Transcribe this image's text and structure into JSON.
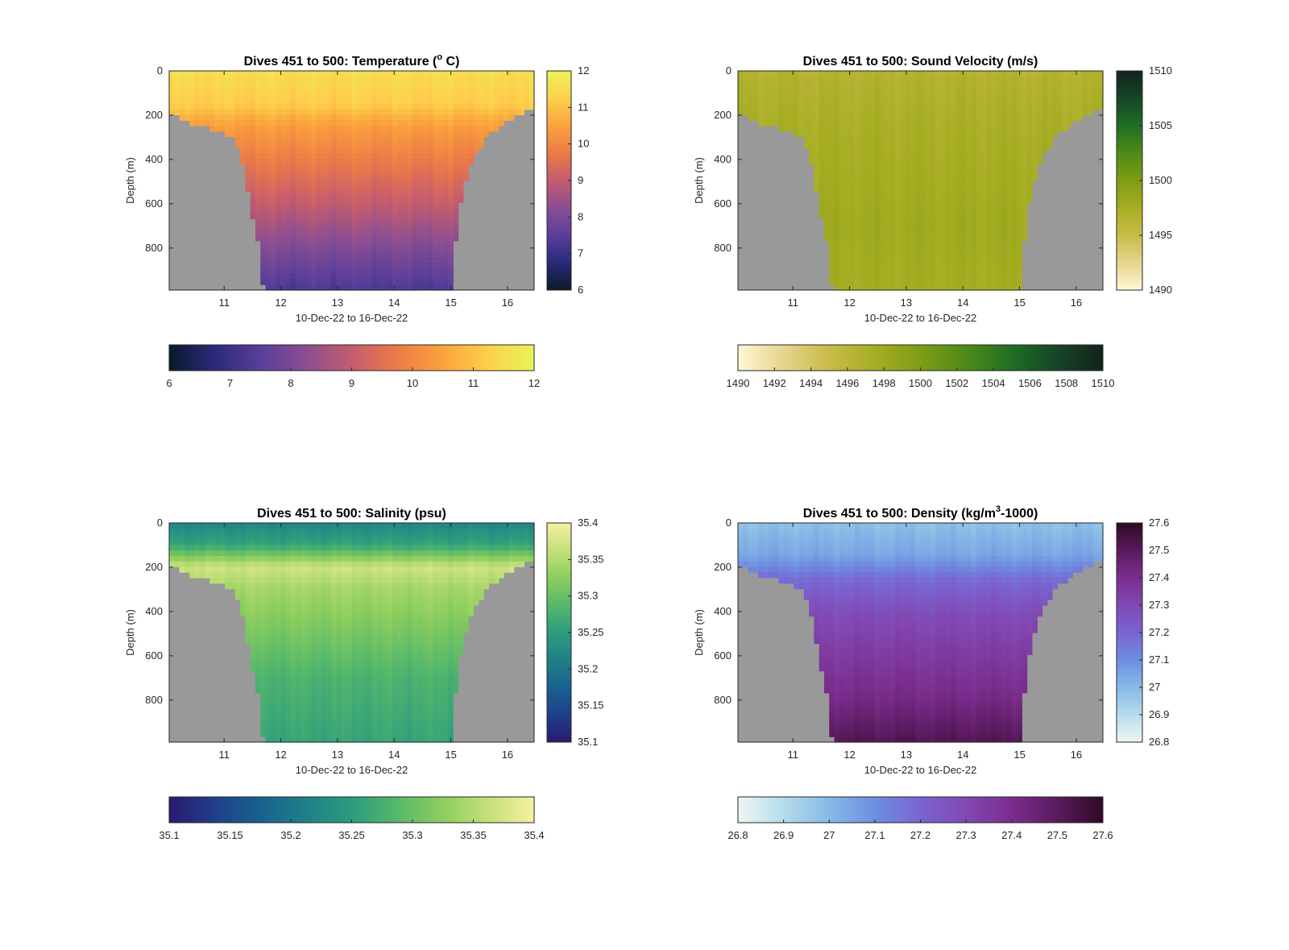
{
  "chart_data": [
    {
      "type": "heatmap",
      "title": "Dives 451 to 500: Temperature (",
      "title_sup": "o",
      "title_tail": " C)",
      "xlabel": "10-Dec-22 to 16-Dec-22",
      "ylabel": "Depth (m)",
      "x_ticks": [
        "11",
        "12",
        "13",
        "14",
        "15",
        "16"
      ],
      "x_tick_values": [
        11,
        12,
        13,
        14,
        15,
        16
      ],
      "xlim": [
        10.03,
        16.47
      ],
      "y_ticks": [
        "0",
        "200",
        "400",
        "600",
        "800"
      ],
      "y_tick_values": [
        0,
        200,
        400,
        600,
        800
      ],
      "ylim": [
        0,
        990
      ],
      "y_reversed": true,
      "clim": [
        6,
        12
      ],
      "colorbar_ticks": [
        "6",
        "7",
        "8",
        "9",
        "10",
        "11",
        "12"
      ],
      "colorbar_tick_values": [
        6,
        7,
        8,
        9,
        10,
        11,
        12
      ],
      "colormap": [
        "#0a1a2a",
        "#2a2a7a",
        "#5a3e9a",
        "#8a4e92",
        "#c45c6e",
        "#ec7a48",
        "#fba33c",
        "#fdd04c",
        "#e8f45a"
      ],
      "background_color": "#999999",
      "bottom_depth": [
        {
          "day": 10.03,
          "depth": 190
        },
        {
          "day": 10.5,
          "depth": 245
        },
        {
          "day": 11.0,
          "depth": 275
        },
        {
          "day": 11.2,
          "depth": 320
        },
        {
          "day": 11.35,
          "depth": 450
        },
        {
          "day": 11.5,
          "depth": 650
        },
        {
          "day": 11.62,
          "depth": 800
        },
        {
          "day": 11.7,
          "depth": 990
        },
        {
          "day": 15.0,
          "depth": 990
        },
        {
          "day": 15.05,
          "depth": 840
        },
        {
          "day": 15.2,
          "depth": 530
        },
        {
          "day": 15.4,
          "depth": 380
        },
        {
          "day": 15.7,
          "depth": 280
        },
        {
          "day": 16.0,
          "depth": 220
        },
        {
          "day": 16.47,
          "depth": 170
        }
      ],
      "profile": [
        {
          "depth": 0,
          "value": 11.5
        },
        {
          "depth": 150,
          "value": 11.2
        },
        {
          "depth": 250,
          "value": 10.4
        },
        {
          "depth": 400,
          "value": 9.8
        },
        {
          "depth": 600,
          "value": 9.0
        },
        {
          "depth": 800,
          "value": 8.1
        },
        {
          "depth": 990,
          "value": 7.3
        }
      ]
    },
    {
      "type": "heatmap",
      "title": "Dives 451 to 500: Sound Velocity (m/s)",
      "title_sup": "",
      "title_tail": "",
      "xlabel": "10-Dec-22 to 16-Dec-22",
      "ylabel": "Depth (m)",
      "x_ticks": [
        "11",
        "12",
        "13",
        "14",
        "15",
        "16"
      ],
      "x_tick_values": [
        11,
        12,
        13,
        14,
        15,
        16
      ],
      "xlim": [
        10.03,
        16.47
      ],
      "y_ticks": [
        "0",
        "200",
        "400",
        "600",
        "800"
      ],
      "y_tick_values": [
        0,
        200,
        400,
        600,
        800
      ],
      "ylim": [
        0,
        990
      ],
      "y_reversed": true,
      "clim": [
        1490,
        1510
      ],
      "colorbar_ticks": [
        "1490",
        "1492",
        "1494",
        "1496",
        "1498",
        "1500",
        "1502",
        "1504",
        "1506",
        "1508",
        "1510"
      ],
      "colorbar_tick_values": [
        1490,
        1492,
        1494,
        1496,
        1498,
        1500,
        1502,
        1504,
        1506,
        1508,
        1510
      ],
      "colorbar_right_ticks": [
        "1490",
        "1495",
        "1500",
        "1505",
        "1510"
      ],
      "colorbar_right_tick_values": [
        1490,
        1495,
        1500,
        1505,
        1510
      ],
      "colormap": [
        "#fdf7d6",
        "#e6d48e",
        "#c8bb48",
        "#a6ad22",
        "#7f9c14",
        "#4f8a18",
        "#1f6e24",
        "#174428",
        "#13231c"
      ],
      "background_color": "#999999",
      "bottom_depth": [
        {
          "day": 10.03,
          "depth": 190
        },
        {
          "day": 10.5,
          "depth": 245
        },
        {
          "day": 11.0,
          "depth": 275
        },
        {
          "day": 11.2,
          "depth": 320
        },
        {
          "day": 11.35,
          "depth": 450
        },
        {
          "day": 11.5,
          "depth": 650
        },
        {
          "day": 11.62,
          "depth": 800
        },
        {
          "day": 11.7,
          "depth": 990
        },
        {
          "day": 15.0,
          "depth": 990
        },
        {
          "day": 15.05,
          "depth": 840
        },
        {
          "day": 15.2,
          "depth": 530
        },
        {
          "day": 15.4,
          "depth": 380
        },
        {
          "day": 15.7,
          "depth": 280
        },
        {
          "day": 16.0,
          "depth": 220
        },
        {
          "day": 16.47,
          "depth": 170
        }
      ],
      "profile": [
        {
          "depth": 0,
          "value": 1496.5
        },
        {
          "depth": 150,
          "value": 1497.0
        },
        {
          "depth": 300,
          "value": 1497.3
        },
        {
          "depth": 500,
          "value": 1497.6
        },
        {
          "depth": 700,
          "value": 1497.9
        },
        {
          "depth": 990,
          "value": 1497.5
        }
      ]
    },
    {
      "type": "heatmap",
      "title": "Dives 451 to 500: Salinity (psu)",
      "title_sup": "",
      "title_tail": "",
      "xlabel": "10-Dec-22 to 16-Dec-22",
      "ylabel": "Depth (m)",
      "x_ticks": [
        "11",
        "12",
        "13",
        "14",
        "15",
        "16"
      ],
      "x_tick_values": [
        11,
        12,
        13,
        14,
        15,
        16
      ],
      "xlim": [
        10.03,
        16.47
      ],
      "y_ticks": [
        "0",
        "200",
        "400",
        "600",
        "800"
      ],
      "y_tick_values": [
        0,
        200,
        400,
        600,
        800
      ],
      "ylim": [
        0,
        990
      ],
      "y_reversed": true,
      "clim": [
        35.1,
        35.4
      ],
      "colorbar_ticks": [
        "35.1",
        "35.15",
        "35.2",
        "35.25",
        "35.3",
        "35.35",
        "35.4"
      ],
      "colorbar_tick_values": [
        35.1,
        35.15,
        35.2,
        35.25,
        35.3,
        35.35,
        35.4
      ],
      "colormap": [
        "#2a1a6e",
        "#1f3f8a",
        "#18628e",
        "#1f8088",
        "#2d9c7e",
        "#55b86a",
        "#8ece5e",
        "#c4e07a",
        "#f6f0a0"
      ],
      "background_color": "#999999",
      "bottom_depth": [
        {
          "day": 10.03,
          "depth": 190
        },
        {
          "day": 10.5,
          "depth": 245
        },
        {
          "day": 11.0,
          "depth": 275
        },
        {
          "day": 11.2,
          "depth": 320
        },
        {
          "day": 11.35,
          "depth": 450
        },
        {
          "day": 11.5,
          "depth": 650
        },
        {
          "day": 11.62,
          "depth": 800
        },
        {
          "day": 11.7,
          "depth": 990
        },
        {
          "day": 15.0,
          "depth": 990
        },
        {
          "day": 15.05,
          "depth": 840
        },
        {
          "day": 15.2,
          "depth": 530
        },
        {
          "day": 15.4,
          "depth": 380
        },
        {
          "day": 15.7,
          "depth": 280
        },
        {
          "day": 16.0,
          "depth": 220
        },
        {
          "day": 16.47,
          "depth": 170
        }
      ],
      "profile": [
        {
          "depth": 0,
          "value": 35.22
        },
        {
          "depth": 100,
          "value": 35.26
        },
        {
          "depth": 200,
          "value": 35.37
        },
        {
          "depth": 300,
          "value": 35.34
        },
        {
          "depth": 500,
          "value": 35.31
        },
        {
          "depth": 700,
          "value": 35.28
        },
        {
          "depth": 990,
          "value": 35.26
        }
      ]
    },
    {
      "type": "heatmap",
      "title": "Dives 451 to 500: Density (kg/m",
      "title_sup": "3",
      "title_tail": "-1000)",
      "xlabel": "10-Dec-22 to 16-Dec-22",
      "ylabel": "Depth (m)",
      "x_ticks": [
        "11",
        "12",
        "13",
        "14",
        "15",
        "16"
      ],
      "x_tick_values": [
        11,
        12,
        13,
        14,
        15,
        16
      ],
      "xlim": [
        10.03,
        16.47
      ],
      "y_ticks": [
        "0",
        "200",
        "400",
        "600",
        "800"
      ],
      "y_tick_values": [
        0,
        200,
        400,
        600,
        800
      ],
      "ylim": [
        0,
        990
      ],
      "y_reversed": true,
      "clim": [
        26.8,
        27.6
      ],
      "colorbar_ticks": [
        "26.8",
        "26.9",
        "27",
        "27.1",
        "27.2",
        "27.3",
        "27.4",
        "27.5",
        "27.6"
      ],
      "colorbar_tick_values": [
        26.8,
        26.9,
        27,
        27.1,
        27.2,
        27.3,
        27.4,
        27.5,
        27.6
      ],
      "colormap": [
        "#eef6f4",
        "#b6dcec",
        "#86b9e6",
        "#6e8ee0",
        "#7a64d2",
        "#8248b2",
        "#7a2e8e",
        "#5a1a5e",
        "#2e0a24"
      ],
      "background_color": "#999999",
      "bottom_depth": [
        {
          "day": 10.03,
          "depth": 190
        },
        {
          "day": 10.5,
          "depth": 245
        },
        {
          "day": 11.0,
          "depth": 275
        },
        {
          "day": 11.2,
          "depth": 320
        },
        {
          "day": 11.35,
          "depth": 450
        },
        {
          "day": 11.5,
          "depth": 650
        },
        {
          "day": 11.62,
          "depth": 800
        },
        {
          "day": 11.7,
          "depth": 990
        },
        {
          "day": 15.0,
          "depth": 990
        },
        {
          "day": 15.05,
          "depth": 840
        },
        {
          "day": 15.2,
          "depth": 530
        },
        {
          "day": 15.4,
          "depth": 380
        },
        {
          "day": 15.7,
          "depth": 280
        },
        {
          "day": 16.0,
          "depth": 220
        },
        {
          "day": 16.47,
          "depth": 170
        }
      ],
      "profile": [
        {
          "depth": 0,
          "value": 26.98
        },
        {
          "depth": 150,
          "value": 27.05
        },
        {
          "depth": 250,
          "value": 27.18
        },
        {
          "depth": 400,
          "value": 27.28
        },
        {
          "depth": 600,
          "value": 27.35
        },
        {
          "depth": 800,
          "value": 27.42
        },
        {
          "depth": 990,
          "value": 27.52
        }
      ]
    }
  ]
}
